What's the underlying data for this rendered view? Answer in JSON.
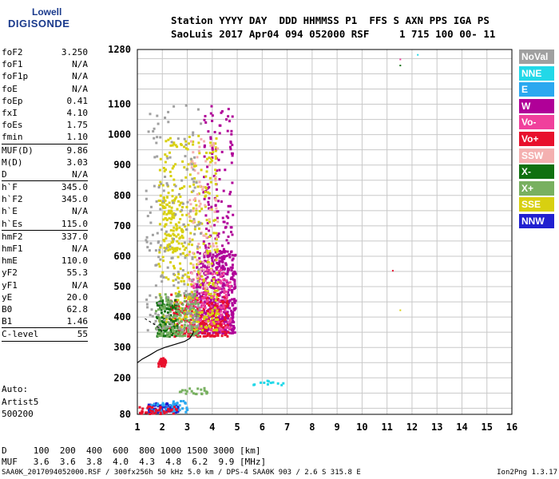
{
  "logo": {
    "line1": "Lowell",
    "line2": "DIGISONDE"
  },
  "header": {
    "line1": "Station YYYY DAY  DDD HHMMSS P1  FFS S AXN PPS IGA PS",
    "line2": "SaoLuis 2017 Apr04 094 052000 RSF     1 715 100 00- 11"
  },
  "params": [
    {
      "name": "foF2",
      "value": "3.250"
    },
    {
      "name": "foF1",
      "value": "N/A"
    },
    {
      "name": "foF1p",
      "value": "N/A"
    },
    {
      "name": "foE",
      "value": "N/A"
    },
    {
      "name": "foEp",
      "value": "0.41"
    },
    {
      "name": "fxI",
      "value": "4.10"
    },
    {
      "name": "foEs",
      "value": "1.75"
    },
    {
      "name": "fmin",
      "value": "1.10"
    },
    {
      "sep": true
    },
    {
      "name": "MUF(D)",
      "value": "9.86"
    },
    {
      "name": "M(D)",
      "value": "3.03"
    },
    {
      "name": "D",
      "value": "N/A"
    },
    {
      "sep": true
    },
    {
      "name": "h`F",
      "value": "345.0"
    },
    {
      "name": "h`F2",
      "value": "345.0"
    },
    {
      "name": "h`E",
      "value": "N/A"
    },
    {
      "name": "h`Es",
      "value": "115.0"
    },
    {
      "sep": true
    },
    {
      "name": "hmF2",
      "value": "337.0"
    },
    {
      "name": "hmF1",
      "value": "N/A"
    },
    {
      "name": "hmE",
      "value": "110.0"
    },
    {
      "name": "yF2",
      "value": "55.3"
    },
    {
      "name": "yF1",
      "value": "N/A"
    },
    {
      "name": "yE",
      "value": "20.0"
    },
    {
      "name": "B0",
      "value": "62.8"
    },
    {
      "name": "B1",
      "value": "1.46"
    },
    {
      "sep": true
    },
    {
      "name": "C-level",
      "value": "55"
    },
    {
      "sep": true
    }
  ],
  "auto": {
    "line1": "Auto:",
    "line2": "Artist5",
    "line3": "500200"
  },
  "legend": [
    {
      "label": "NoVal",
      "color": "#a0a0a0"
    },
    {
      "label": "NNE",
      "color": "#22d8e8"
    },
    {
      "label": "E",
      "color": "#2aa8f0"
    },
    {
      "label": "W",
      "color": "#b00098"
    },
    {
      "label": "Vo-",
      "color": "#f0409c"
    },
    {
      "label": "Vo+",
      "color": "#e8102c"
    },
    {
      "label": "SSW",
      "color": "#f4b0b0"
    },
    {
      "label": "X-",
      "color": "#107010"
    },
    {
      "label": "X+",
      "color": "#78b060"
    },
    {
      "label": "SSE",
      "color": "#d8d010"
    },
    {
      "label": "NNW",
      "color": "#2020d0"
    }
  ],
  "bottom": {
    "line1": "D     100  200  400  600  800 1000 1500 3000 [km]",
    "line2": "MUF   3.6  3.6  3.8  4.0  4.3  4.8  6.2  9.9 [MHz]"
  },
  "footer": {
    "left": "SAA0K_2017094052000.RSF / 300fx256h 50 kHz 5.0 km / DPS-4 SAA0K 903 / 2.6 S 315.8 E",
    "right": "Ion2Png 1.3.17"
  },
  "chart_data": {
    "type": "scatter",
    "title": "",
    "xlabel": "",
    "ylabel": "",
    "xlim": [
      1,
      16
    ],
    "ylim": [
      80,
      1280
    ],
    "x_ticks": [
      1,
      2,
      3,
      4,
      5,
      6,
      7,
      8,
      9,
      10,
      11,
      12,
      13,
      14,
      15,
      16
    ],
    "y_ticks": [
      80,
      200,
      300,
      400,
      500,
      600,
      700,
      800,
      900,
      1000,
      1100,
      1280
    ],
    "grid": true,
    "profile_curve": {
      "name": "",
      "points": [
        [
          1.0,
          250
        ],
        [
          1.2,
          262
        ],
        [
          1.5,
          275
        ],
        [
          1.8,
          290
        ],
        [
          2.1,
          300
        ],
        [
          2.5,
          310
        ],
        [
          2.9,
          320
        ],
        [
          3.1,
          330
        ],
        [
          3.22,
          345
        ],
        [
          3.25,
          355
        ]
      ]
    },
    "dashed_trace": {
      "points": [
        [
          1.3,
          395
        ],
        [
          1.5,
          385
        ],
        [
          1.7,
          375
        ],
        [
          1.85,
          365
        ],
        [
          2.0,
          352
        ]
      ]
    },
    "echo_regions": [
      {
        "series": "W",
        "x": [
          3.3,
          4.9
        ],
        "y": [
          350,
          620
        ],
        "n": 520
      },
      {
        "series": "W",
        "x": [
          3.6,
          4.8
        ],
        "y": [
          600,
          1100
        ],
        "n": 140
      },
      {
        "series": "Vo+",
        "x": [
          2.2,
          4.6
        ],
        "y": [
          340,
          480
        ],
        "n": 260
      },
      {
        "series": "Vo-",
        "x": [
          3.0,
          4.7
        ],
        "y": [
          360,
          560
        ],
        "n": 160
      },
      {
        "series": "SSE",
        "x": [
          1.8,
          4.2
        ],
        "y": [
          360,
          1000
        ],
        "n": 360
      },
      {
        "series": "SSE",
        "x": [
          2.0,
          2.8
        ],
        "y": [
          620,
          800
        ],
        "n": 90
      },
      {
        "series": "X-",
        "x": [
          1.7,
          2.6
        ],
        "y": [
          340,
          460
        ],
        "n": 120
      },
      {
        "series": "X+",
        "x": [
          1.7,
          3.4
        ],
        "y": [
          340,
          480
        ],
        "n": 150
      },
      {
        "series": "SSW",
        "x": [
          3.0,
          4.2
        ],
        "y": [
          500,
          1000
        ],
        "n": 90
      },
      {
        "series": "NNW",
        "x": [
          1.4,
          2.6
        ],
        "y": [
          90,
          120
        ],
        "n": 80
      },
      {
        "series": "E",
        "x": [
          1.5,
          3.0
        ],
        "y": [
          90,
          130
        ],
        "n": 50
      },
      {
        "series": "NoVal",
        "x": [
          1.3,
          3.5
        ],
        "y": [
          360,
          1100
        ],
        "n": 180
      },
      {
        "series": "Vo+",
        "x": [
          1.0,
          2.6
        ],
        "y": [
          85,
          110
        ],
        "n": 40
      },
      {
        "series": "Vo+",
        "x": [
          1.8,
          2.1
        ],
        "y": [
          240,
          270
        ],
        "n": 30
      },
      {
        "series": "NNE",
        "x": [
          5.5,
          6.8
        ],
        "y": [
          180,
          195
        ],
        "n": 12
      },
      {
        "series": "X+",
        "x": [
          2.6,
          3.8
        ],
        "y": [
          150,
          170
        ],
        "n": 20
      }
    ],
    "isolated_points": [
      {
        "series": "NNE",
        "x": 12.2,
        "y": 1265
      },
      {
        "series": "Vo-",
        "x": 11.5,
        "y": 1250
      },
      {
        "series": "X-",
        "x": 11.5,
        "y": 1230
      },
      {
        "series": "Vo+",
        "x": 11.2,
        "y": 555
      },
      {
        "series": "SSE",
        "x": 11.5,
        "y": 425
      }
    ]
  }
}
